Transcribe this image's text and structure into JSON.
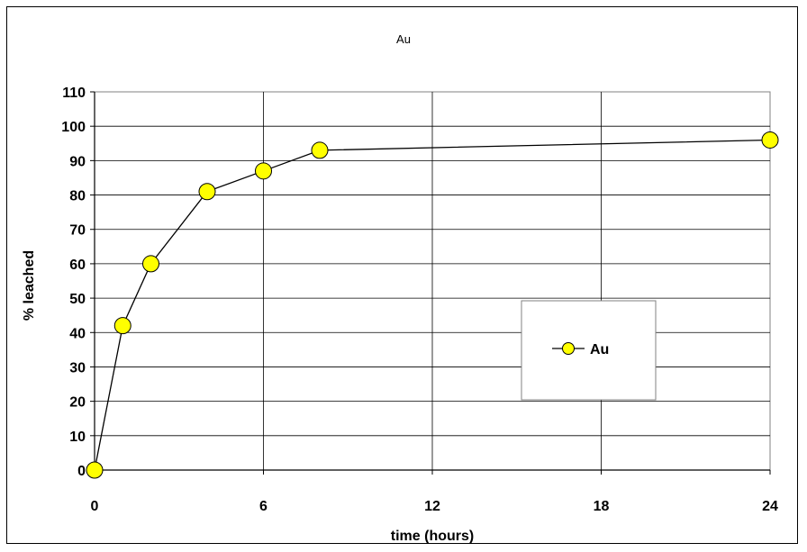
{
  "chart_data": {
    "type": "scatter",
    "title": "Au",
    "xlabel": "time (hours)",
    "ylabel": "% leached",
    "xlim": [
      0,
      24
    ],
    "ylim": [
      0,
      110
    ],
    "x_ticks": [
      "0",
      "6",
      "12",
      "18",
      "24"
    ],
    "y_ticks": [
      "0",
      "10",
      "20",
      "30",
      "40",
      "50",
      "60",
      "70",
      "80",
      "90",
      "100",
      "110"
    ],
    "grid": true,
    "legend_position": "right",
    "series": [
      {
        "name": "Au",
        "color": "#ffff00",
        "line_color": "#000000",
        "marker": "circle",
        "x": [
          0,
          1,
          2,
          4,
          6,
          8,
          24
        ],
        "y": [
          0,
          42,
          60,
          81,
          87,
          93,
          96
        ]
      }
    ]
  }
}
